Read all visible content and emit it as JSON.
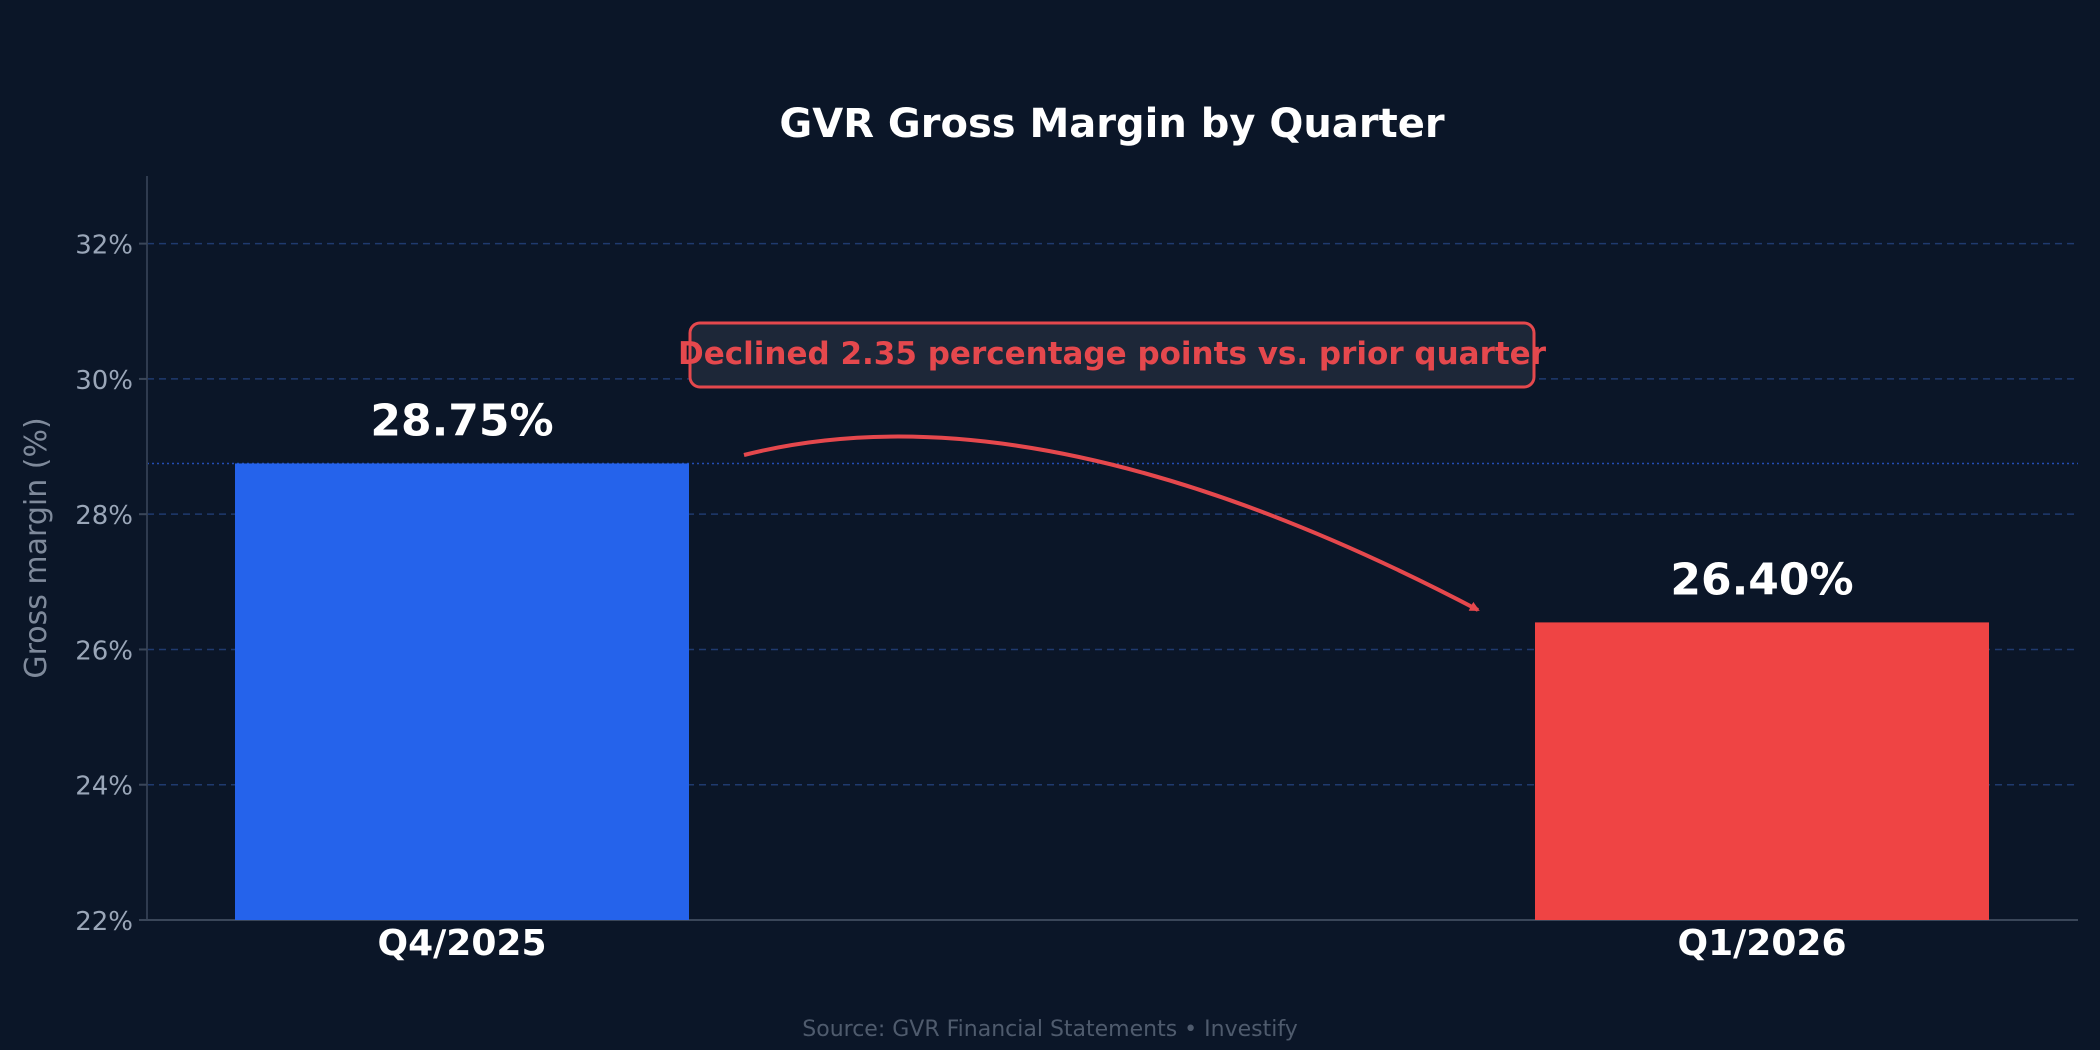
{
  "chart_data": {
    "type": "bar",
    "title": "GVR Gross Margin by Quarter",
    "xlabel": "",
    "ylabel": "Gross margin (%)",
    "categories": [
      "Q4/2025",
      "Q1/2026"
    ],
    "values": [
      28.75,
      26.4
    ],
    "value_labels": [
      "28.75%",
      "26.40%"
    ],
    "ylim": [
      22,
      33
    ],
    "yticks": [
      22,
      24,
      26,
      28,
      30,
      32
    ],
    "ytick_labels": [
      "22%",
      "24%",
      "26%",
      "28%",
      "30%",
      "32%"
    ],
    "grid": true,
    "annotation": "Declined 2.35 percentage points vs. prior quarter",
    "source": "Source: GVR Financial Statements  •  Investify",
    "colors": {
      "background": "#0b1628",
      "bar_prior": "#2563eb",
      "bar_current": "#ef4444",
      "annotation": "#e5484d",
      "grid": "#1f3a6e"
    }
  }
}
